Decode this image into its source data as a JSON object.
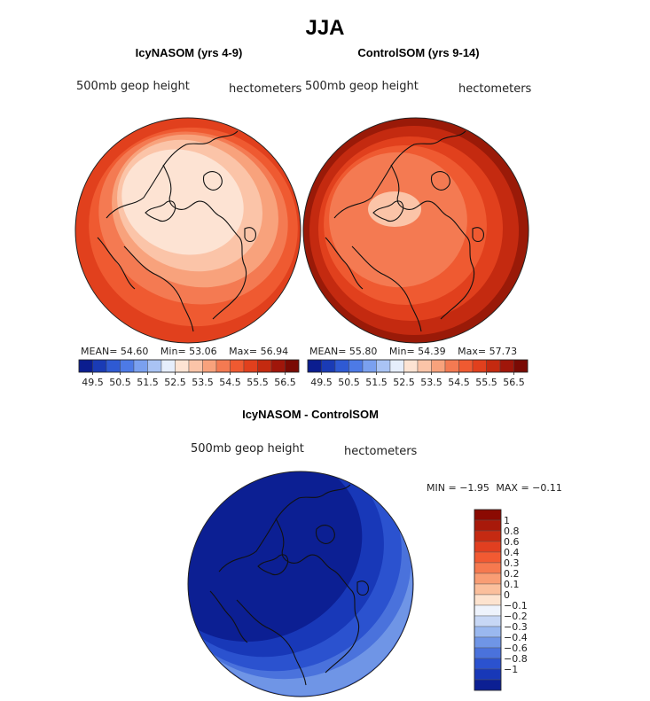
{
  "figure": {
    "title": "JJA"
  },
  "chart_data": [
    {
      "type": "heatmap",
      "panel": "left",
      "title": "IcyNASOM (yrs 4-9)",
      "variable_label": "500mb geop height",
      "units_label": "hectometers",
      "stats": {
        "mean_label": "MEAN=",
        "mean": "54.60",
        "min_label": "Min=",
        "min": "53.06",
        "max_label": "Max=",
        "max": "56.94"
      },
      "colorbar": {
        "orientation": "horizontal",
        "tick_labels": [
          "49.5",
          "50.5",
          "51.5",
          "52.5",
          "53.5",
          "54.5",
          "55.5",
          "56.5"
        ],
        "colors": [
          "#0b1d8f",
          "#1a3bb5",
          "#2f5ad3",
          "#4d7ae6",
          "#7aa0ef",
          "#a9c3f4",
          "#e6eefc",
          "#fde3d3",
          "#fbc4a8",
          "#f8a27c",
          "#f47a52",
          "#ef5a31",
          "#e1401d",
          "#c42a10",
          "#a0160a",
          "#7a0a04"
        ]
      },
      "levels": [
        {
          "value": 54.0,
          "color": "#e1401d"
        },
        {
          "value": 54.5,
          "color": "#ef5a31"
        },
        {
          "value": 55.0,
          "color": "#f47a52"
        },
        {
          "value": 55.5,
          "color": "#f8a27c"
        },
        {
          "value": 56.0,
          "color": "#fbc4a8"
        },
        {
          "value": 56.5,
          "color": "#fde3d3"
        }
      ]
    },
    {
      "type": "heatmap",
      "panel": "right",
      "title": "ControlSOM (yrs 9-14)",
      "variable_label": "500mb geop height",
      "units_label": "hectometers",
      "stats": {
        "mean_label": "MEAN=",
        "mean": "55.80",
        "min_label": "Min=",
        "min": "54.39",
        "max_label": "Max=",
        "max": "57.73"
      },
      "colorbar": {
        "orientation": "horizontal",
        "tick_labels": [
          "49.5",
          "50.5",
          "51.5",
          "52.5",
          "53.5",
          "54.5",
          "55.5",
          "56.5"
        ],
        "colors": [
          "#0b1d8f",
          "#1a3bb5",
          "#2f5ad3",
          "#4d7ae6",
          "#7aa0ef",
          "#a9c3f4",
          "#e6eefc",
          "#fde3d3",
          "#fbc4a8",
          "#f8a27c",
          "#f47a52",
          "#ef5a31",
          "#e1401d",
          "#c42a10",
          "#a0160a",
          "#7a0a04"
        ]
      },
      "levels": [
        {
          "value": 56.9,
          "color": "#9a1a08"
        },
        {
          "value": 56.5,
          "color": "#c42a10"
        },
        {
          "value": 56.0,
          "color": "#e1401d"
        },
        {
          "value": 55.5,
          "color": "#ef5a31"
        },
        {
          "value": 55.0,
          "color": "#f47a52"
        },
        {
          "value": 54.5,
          "color": "#fbc4a8"
        }
      ]
    },
    {
      "type": "heatmap",
      "panel": "bottom",
      "title": "IcyNASOM - ControlSOM",
      "variable_label": "500mb geop height",
      "units_label": "hectometers",
      "stats": {
        "min_label": "MIN =",
        "min": "−1.95",
        "max_label": "MAX =",
        "max": "−0.11"
      },
      "colorbar": {
        "orientation": "vertical",
        "tick_labels": [
          "1",
          "0.8",
          "0.6",
          "0.4",
          "0.3",
          "0.2",
          "0.1",
          "0",
          "−0.1",
          "−0.2",
          "−0.3",
          "−0.4",
          "−0.6",
          "−0.8",
          "−1"
        ],
        "colors": [
          "#8b0a02",
          "#a8190a",
          "#c52a12",
          "#e13f20",
          "#f25a32",
          "#f6794f",
          "#f99d74",
          "#fbbf9c",
          "#fde3cf",
          "#eef3fc",
          "#c7d7f5",
          "#9ab8ef",
          "#6f95e6",
          "#4a72dc",
          "#2b52cf",
          "#1838b8",
          "#0c1f93"
        ]
      },
      "levels": [
        {
          "value": -1.0,
          "color": "#0c1f93"
        },
        {
          "value": -0.8,
          "color": "#1838b8"
        },
        {
          "value": -0.6,
          "color": "#2b52cf"
        },
        {
          "value": -0.4,
          "color": "#4a72dc"
        },
        {
          "value": -0.2,
          "color": "#9ab8ef"
        }
      ]
    }
  ]
}
